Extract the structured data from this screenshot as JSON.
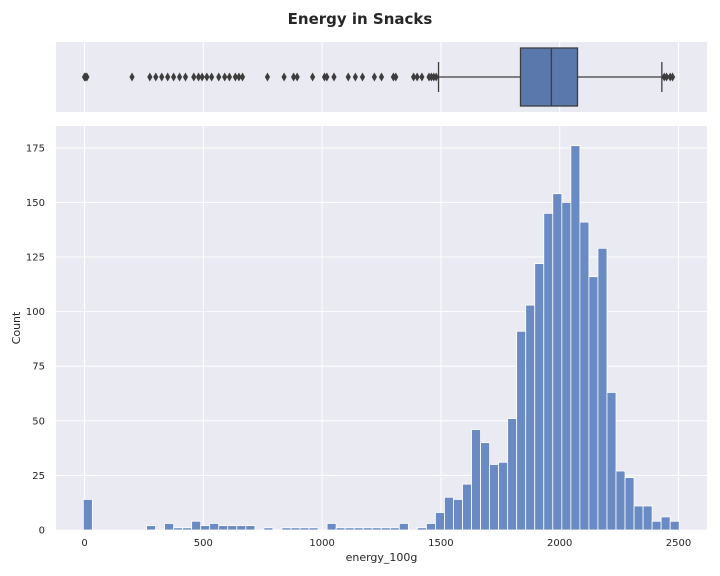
{
  "chart_data": [
    {
      "type": "box",
      "title": "Energy in Snacks",
      "orientation": "horizontal",
      "color": "#5a78ac",
      "xlim": [
        -120,
        2620
      ],
      "box": {
        "q1": 1835,
        "median": 1965,
        "q3": 2075,
        "whisker_low": 1490,
        "whisker_high": 2430
      },
      "outliers": [
        0,
        5,
        10,
        200,
        275,
        300,
        325,
        350,
        375,
        400,
        425,
        460,
        480,
        495,
        515,
        535,
        565,
        590,
        610,
        635,
        650,
        665,
        770,
        840,
        880,
        895,
        960,
        1010,
        1020,
        1050,
        1110,
        1140,
        1170,
        1220,
        1250,
        1300,
        1310,
        1385,
        1400,
        1420,
        1450,
        1460,
        1470,
        1480,
        2440,
        2450,
        2465,
        2475
      ],
      "grid": true
    },
    {
      "type": "histogram",
      "xlabel": "energy_100g",
      "ylabel": "Count",
      "xlim": [
        -120,
        2620
      ],
      "ylim": [
        0,
        185
      ],
      "xticks": [
        0,
        500,
        1000,
        1500,
        2000,
        2500
      ],
      "yticks": [
        0,
        25,
        50,
        75,
        100,
        125,
        150,
        175
      ],
      "bin_start": -5,
      "bin_width": 38,
      "counts": [
        14,
        0,
        0,
        0,
        0,
        0,
        0,
        2,
        0,
        3,
        1,
        1,
        4,
        2,
        3,
        2,
        2,
        2,
        2,
        0,
        1,
        0,
        1,
        1,
        1,
        1,
        0,
        3,
        1,
        1,
        1,
        1,
        1,
        1,
        1,
        3,
        0,
        1,
        3,
        8,
        15,
        14,
        21,
        46,
        40,
        30,
        31,
        51,
        91,
        103,
        122,
        145,
        154,
        150,
        176,
        141,
        116,
        129,
        63,
        27,
        24,
        11,
        11,
        4,
        6,
        4
      ],
      "color": "#6a8ac4",
      "grid": true
    }
  ]
}
